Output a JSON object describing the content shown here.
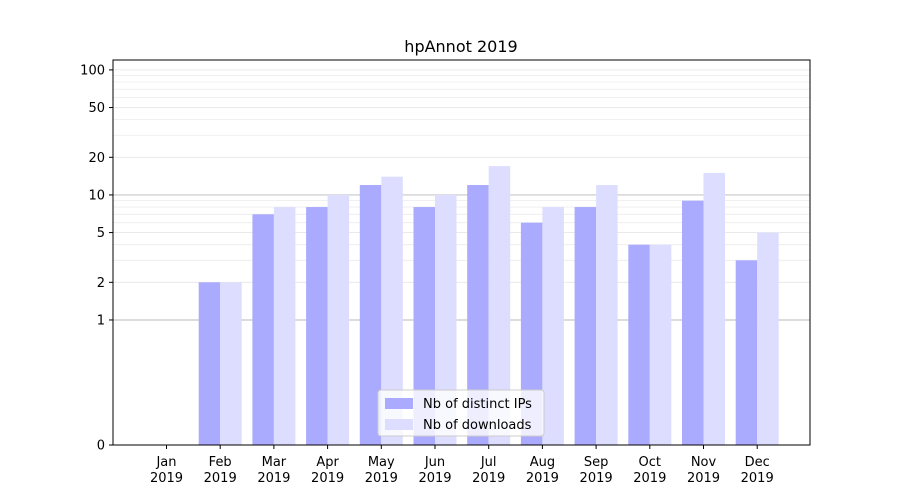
{
  "chart_data": {
    "type": "bar",
    "title": "hpAnnot 2019",
    "xlabel": "",
    "ylabel": "",
    "yscale": "symlog",
    "ylim": [
      0,
      120
    ],
    "major_yticks": [
      0,
      1,
      2,
      5,
      10,
      20,
      50,
      100
    ],
    "major_ytick_labels": [
      "0",
      "1",
      "2",
      "5",
      "10",
      "20",
      "50",
      "100"
    ],
    "minor_yticks": [
      3,
      4,
      6,
      7,
      8,
      9,
      30,
      40,
      60,
      70,
      80,
      90
    ],
    "emphasized_gridlines": [
      1,
      10
    ],
    "categories": [
      "Jan\n2019",
      "Feb\n2019",
      "Mar\n2019",
      "Apr\n2019",
      "May\n2019",
      "Jun\n2019",
      "Jul\n2019",
      "Aug\n2019",
      "Sep\n2019",
      "Oct\n2019",
      "Nov\n2019",
      "Dec\n2019"
    ],
    "series": [
      {
        "name": "Nb of distinct IPs",
        "color": "#aaaaff",
        "values": [
          0,
          2,
          7,
          8,
          12,
          8,
          12,
          6,
          8,
          4,
          9,
          3
        ]
      },
      {
        "name": "Nb of downloads",
        "color": "#ddddff",
        "values": [
          0,
          2,
          8,
          10,
          14,
          10,
          17,
          8,
          12,
          4,
          15,
          5
        ]
      }
    ],
    "legend": {
      "position": "bottom-center",
      "entries": [
        "Nb of distinct IPs",
        "Nb of downloads"
      ]
    }
  }
}
